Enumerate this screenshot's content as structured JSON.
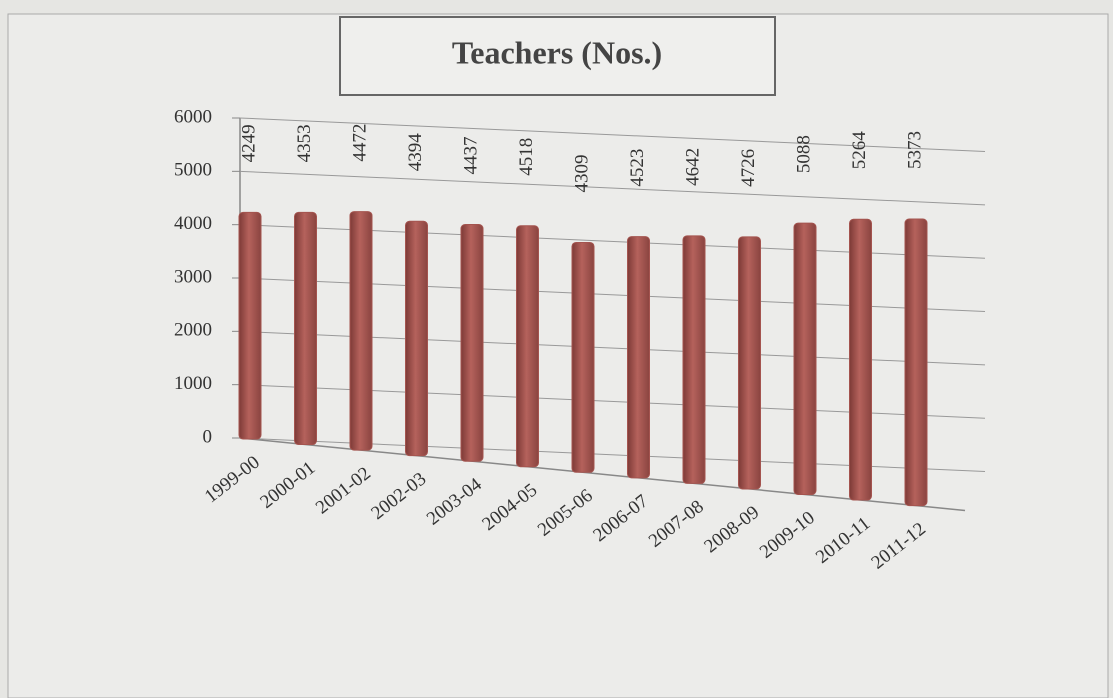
{
  "chart_data": {
    "type": "bar",
    "title": "Teachers (Nos.)",
    "categories": [
      "1999-00",
      "2000-01",
      "2001-02",
      "2002-03",
      "2003-04",
      "2004-05",
      "2005-06",
      "2006-07",
      "2007-08",
      "2008-09",
      "2009-10",
      "2010-11",
      "2011-12"
    ],
    "values": [
      4249,
      4353,
      4472,
      4394,
      4437,
      4518,
      4309,
      4523,
      4642,
      4726,
      5088,
      5264,
      5373
    ],
    "color": "#a4544f",
    "ylim": [
      0,
      6000
    ],
    "yticks": [
      0,
      1000,
      2000,
      3000,
      4000,
      5000,
      6000
    ],
    "grid": true
  }
}
